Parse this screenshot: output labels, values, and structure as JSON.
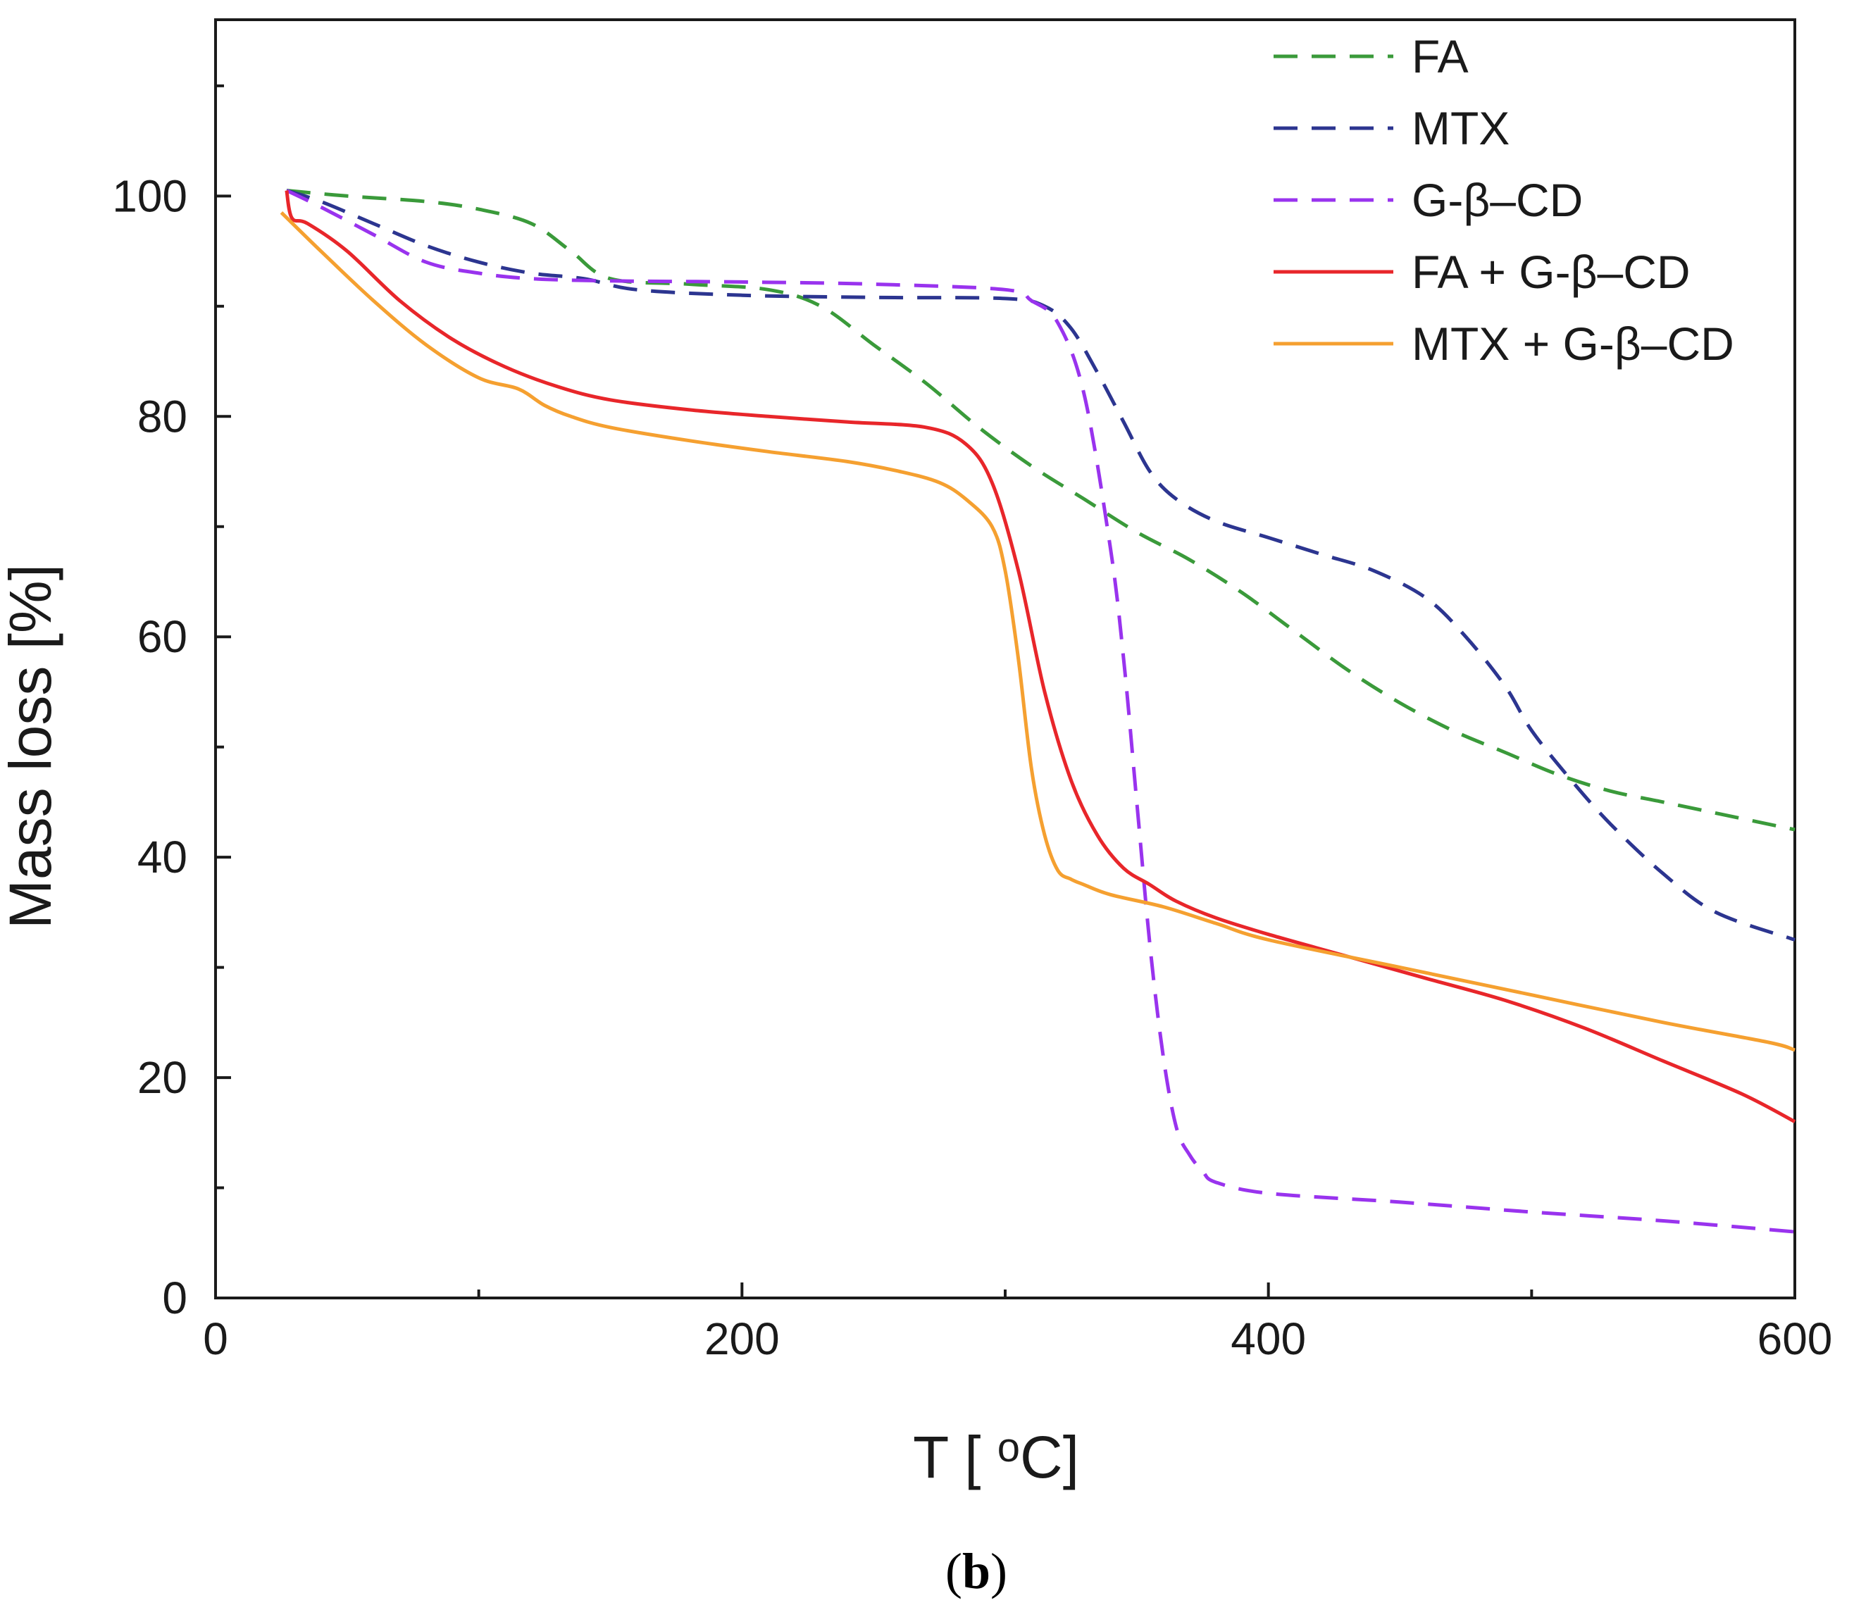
{
  "chart_data": {
    "type": "line",
    "xlabel": "T [oC]",
    "ylabel": "Mass loss [%]",
    "xlim": [
      0,
      600
    ],
    "ylim": [
      0,
      116
    ],
    "x_ticks": [
      0,
      200,
      400,
      600
    ],
    "y_ticks": [
      0,
      20,
      40,
      60,
      80,
      100
    ],
    "x_minor_ticks": [
      100,
      300,
      500
    ],
    "y_minor_ticks": [
      10,
      30,
      50,
      70,
      90,
      110
    ],
    "grid": false,
    "legend_position": "top-right",
    "caption": {
      "open": "(",
      "letter": "b",
      "close": ")"
    },
    "series": [
      {
        "name": "FA",
        "color": "#3a9a3a",
        "style": "dashed",
        "x": [
          27,
          50,
          80,
          100,
          120,
          135,
          150,
          180,
          210,
          230,
          250,
          270,
          290,
          310,
          330,
          350,
          370,
          390,
          410,
          430,
          450,
          470,
          490,
          510,
          530,
          550,
          570,
          600
        ],
        "y": [
          100.5,
          100,
          99.5,
          98.8,
          97.5,
          95,
          92.5,
          92,
          91.5,
          90,
          86.5,
          83,
          79,
          75.5,
          72.5,
          69.5,
          67,
          64,
          60.5,
          57,
          54,
          51.5,
          49.5,
          47.5,
          46,
          45,
          44,
          42.5
        ]
      },
      {
        "name": "MTX",
        "color": "#2c3590",
        "style": "dashed",
        "x": [
          27,
          40,
          60,
          80,
          100,
          120,
          140,
          160,
          200,
          250,
          300,
          315,
          325,
          335,
          345,
          355,
          365,
          380,
          400,
          420,
          440,
          460,
          475,
          490,
          500,
          515,
          530,
          550,
          570,
          600
        ],
        "y": [
          100.5,
          99.5,
          97.5,
          95.5,
          94,
          93,
          92.5,
          91.5,
          91,
          90.8,
          90.7,
          90,
          88,
          84,
          79.5,
          75,
          72.5,
          70.5,
          69,
          67.5,
          66,
          63.5,
          60,
          55.5,
          51.5,
          47,
          43,
          38.5,
          35,
          32.5
        ]
      },
      {
        "name": "G-β–CD",
        "color": "#9933ee",
        "style": "dashed",
        "x": [
          27,
          40,
          60,
          80,
          100,
          120,
          150,
          200,
          250,
          300,
          310,
          320,
          330,
          340,
          345,
          350,
          355,
          360,
          365,
          370,
          375,
          380,
          400,
          450,
          500,
          550,
          600
        ],
        "y": [
          100.5,
          99,
          96.5,
          94,
          93,
          92.5,
          92.3,
          92.2,
          92,
          91.5,
          90.5,
          88.5,
          82,
          68,
          58,
          45,
          32,
          22,
          15.5,
          13,
          11.5,
          10.5,
          9.5,
          8.7,
          7.8,
          7,
          6
        ]
      },
      {
        "name": "FA + G-β–CD",
        "color": "#e8262a",
        "style": "solid",
        "x": [
          27,
          29,
          35,
          50,
          70,
          90,
          110,
          130,
          150,
          180,
          210,
          240,
          270,
          285,
          295,
          305,
          315,
          325,
          335,
          345,
          355,
          365,
          380,
          400,
          430,
          460,
          490,
          520,
          550,
          580,
          600
        ],
        "y": [
          100.5,
          98,
          97.5,
          95,
          90.5,
          87,
          84.5,
          82.7,
          81.5,
          80.6,
          80,
          79.5,
          79,
          77.5,
          74,
          66,
          55,
          47,
          42,
          39,
          37.5,
          36,
          34.5,
          33,
          31,
          29,
          27,
          24.5,
          21.5,
          18.5,
          16
        ]
      },
      {
        "name": "MTX + G-β–CD",
        "color": "#f5a030",
        "style": "solid",
        "x": [
          25,
          40,
          60,
          80,
          100,
          115,
          125,
          135,
          150,
          180,
          210,
          240,
          260,
          275,
          285,
          295,
          300,
          305,
          310,
          315,
          320,
          325,
          330,
          340,
          360,
          380,
          400,
          450,
          500,
          550,
          590,
          600
        ],
        "y": [
          98.5,
          95,
          90.5,
          86.5,
          83.5,
          82.5,
          81,
          80,
          79,
          77.8,
          76.8,
          75.9,
          75,
          74,
          72.5,
          70,
          66,
          58,
          48,
          42,
          38.8,
          38,
          37.5,
          36.6,
          35.5,
          34,
          32.5,
          30,
          27.5,
          25,
          23.2,
          22.5
        ]
      }
    ]
  }
}
